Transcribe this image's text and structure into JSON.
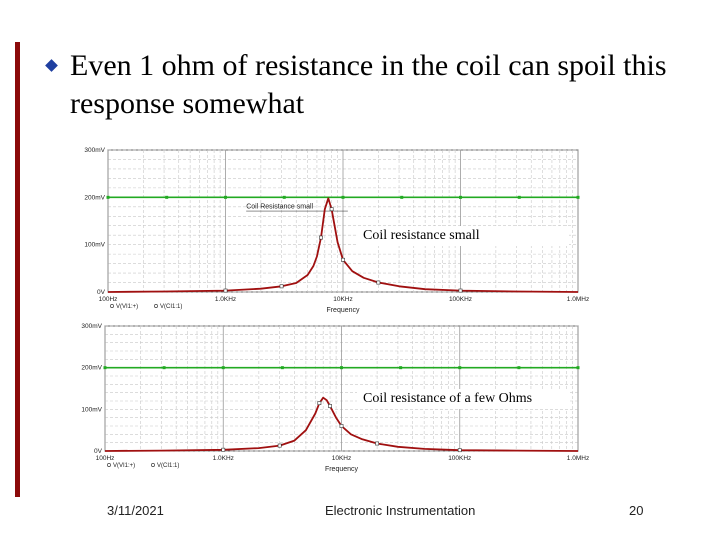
{
  "slide": {
    "title": "Even 1 ohm of resistance in the coil can spoil this response somewhat",
    "annotations": [
      "Coil resistance small",
      "Coil resistance of a few Ohms"
    ],
    "footer": {
      "date": "3/11/2021",
      "center": "Electronic Instrumentation",
      "page": "20"
    }
  },
  "colors": {
    "grid": "#c8c8c8",
    "reference": "#22aa22",
    "response": "#a01010",
    "accent_bar": "#8b0a0a",
    "bullet": "#1f3fa0"
  },
  "chart_data": [
    {
      "type": "line",
      "xscale": "log",
      "xlim": [
        100,
        1000000
      ],
      "ylim": [
        0,
        300
      ],
      "xticks": [
        100,
        1000,
        10000,
        100000,
        1000000
      ],
      "xtick_labels": [
        "100Hz",
        "1.0KHz",
        "10KHz",
        "100KHz",
        "1.0MHz"
      ],
      "yticks": [
        0,
        100,
        200,
        300
      ],
      "ytick_labels": [
        "0V",
        "100mV",
        "200mV",
        "300mV"
      ],
      "xlabel": "Frequency",
      "legend": [
        "V(VI1:+)",
        "V(CI1:1)"
      ],
      "trace_label": "Coil Resistance small",
      "series": [
        {
          "name": "V(VI1:+)",
          "x": [
            100,
            1000000
          ],
          "y": [
            200,
            200
          ]
        },
        {
          "name": "V(CI1:1)",
          "x": [
            100,
            300,
            1000,
            2000,
            3000,
            4000,
            5000,
            5600,
            6000,
            6500,
            7000,
            7500,
            8000,
            9000,
            10000,
            12000,
            15000,
            20000,
            30000,
            50000,
            100000,
            300000,
            1000000
          ],
          "y": [
            0,
            1,
            3,
            7,
            12,
            19,
            36,
            55,
            75,
            115,
            175,
            198,
            175,
            105,
            68,
            44,
            30,
            20,
            12,
            6,
            3,
            1,
            0
          ]
        }
      ]
    },
    {
      "type": "line",
      "xscale": "log",
      "xlim": [
        100,
        1000000
      ],
      "ylim": [
        0,
        300
      ],
      "xticks": [
        100,
        1000,
        10000,
        100000,
        1000000
      ],
      "xtick_labels": [
        "100Hz",
        "1.0KHz",
        "10KHz",
        "100KHz",
        "1.0MHz"
      ],
      "yticks": [
        0,
        100,
        200,
        300
      ],
      "ytick_labels": [
        "0V",
        "100mV",
        "200mV",
        "300mV"
      ],
      "xlabel": "Frequency",
      "legend": [
        "V(VI1:+)",
        "V(CI1:1)"
      ],
      "series": [
        {
          "name": "V(VI1:+)",
          "x": [
            100,
            1000000
          ],
          "y": [
            200,
            200
          ]
        },
        {
          "name": "V(CI1:1)",
          "x": [
            100,
            300,
            1000,
            2000,
            3000,
            4000,
            5000,
            6000,
            6500,
            7000,
            7500,
            8000,
            9000,
            10000,
            12000,
            15000,
            20000,
            30000,
            50000,
            100000,
            300000,
            1000000
          ],
          "y": [
            0,
            1,
            3,
            7,
            13,
            25,
            50,
            90,
            115,
            128,
            122,
            108,
            80,
            60,
            40,
            28,
            18,
            10,
            5,
            2,
            1,
            0
          ]
        }
      ]
    }
  ]
}
